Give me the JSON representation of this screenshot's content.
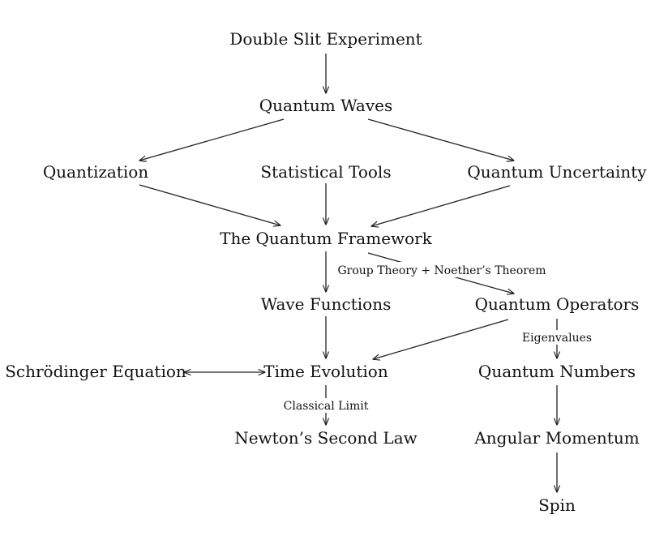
{
  "nodes": {
    "double_slit": "Double Slit Experiment",
    "quantum_waves": "Quantum Waves",
    "quantization": "Quantization",
    "statistical_tools": "Statistical Tools",
    "quantum_uncertainty": "Quantum Uncertainty",
    "quantum_framework": "The Quantum Framework",
    "wave_functions": "Wave Functions",
    "quantum_operators": "Quantum Operators",
    "schrodinger": "Schrödinger Equation",
    "time_evolution": "Time Evolution",
    "quantum_numbers": "Quantum Numbers",
    "newton": "Newton’s Second Law",
    "angular_momentum": "Angular Momentum",
    "spin": "Spin"
  },
  "edge_labels": {
    "group_theory": "Group Theory + Noether’s Theorem",
    "eigenvalues": "Eigenvalues",
    "classical_limit": "Classical Limit"
  },
  "colors": {
    "text": "#111111",
    "arrows": "#222222",
    "background": "#ffffff"
  }
}
